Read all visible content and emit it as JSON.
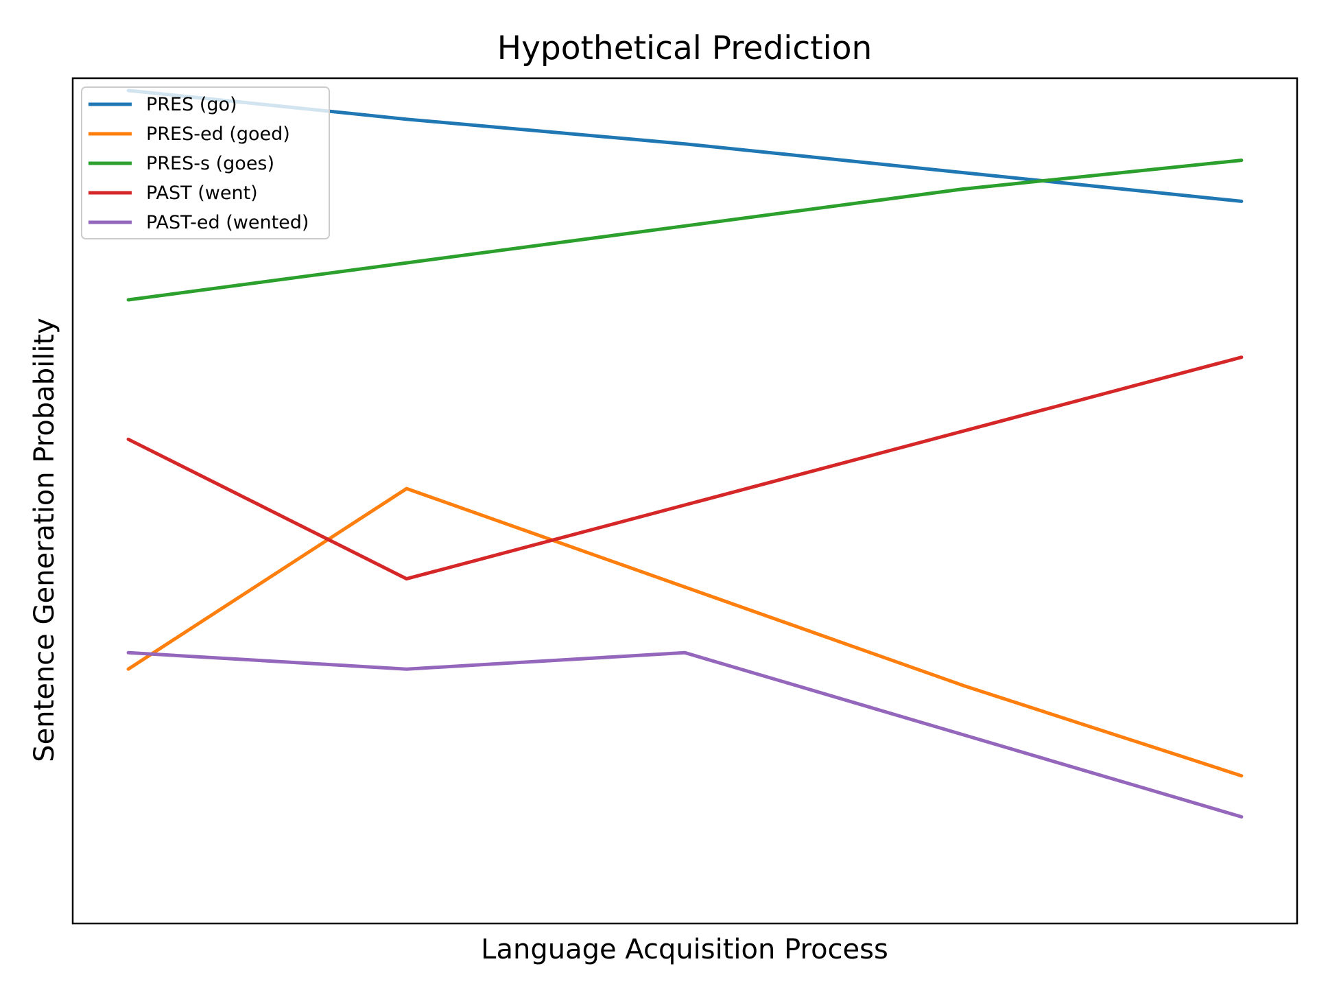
{
  "chart_data": {
    "type": "line",
    "title": "Hypothetical Prediction",
    "xlabel": "Language Acquisition Process",
    "ylabel": "Sentence Generation Probability",
    "x": [
      0,
      1,
      2,
      3,
      4
    ],
    "xlim": [
      -0.2,
      4.2
    ],
    "ylim": [
      -0.03,
      1.0
    ],
    "grid": false,
    "ticks_visible": false,
    "legend_position": "top-left",
    "series": [
      {
        "name": "PRES (go)",
        "color": "#1f77b4",
        "values": [
          0.985,
          0.95,
          0.92,
          0.885,
          0.85
        ]
      },
      {
        "name": "PRES-ed (goed)",
        "color": "#ff7f0e",
        "values": [
          0.28,
          0.5,
          0.38,
          0.26,
          0.15
        ]
      },
      {
        "name": "PRES-s (goes)",
        "color": "#2ca02c",
        "values": [
          0.73,
          0.775,
          0.82,
          0.865,
          0.9
        ]
      },
      {
        "name": "PAST (went)",
        "color": "#d62728",
        "values": [
          0.56,
          0.39,
          0.48,
          0.57,
          0.66
        ]
      },
      {
        "name": "PAST-ed (wented)",
        "color": "#9467bd",
        "values": [
          0.3,
          0.28,
          0.3,
          0.2,
          0.1
        ]
      }
    ]
  }
}
